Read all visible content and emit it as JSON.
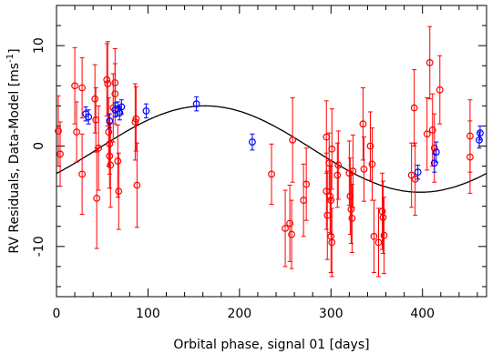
{
  "chart_data": {
    "type": "scatter",
    "xlabel": "Orbital phase, signal 01 [days]",
    "ylabel_main": "RV Residuals, Data-Model [ms",
    "ylabel_sup": "-1",
    "ylabel_end": "]",
    "xlim": [
      0,
      470
    ],
    "ylim": [
      -15,
      14
    ],
    "x_ticks": [
      0,
      100,
      200,
      300,
      400
    ],
    "y_ticks": [
      -10,
      0,
      10
    ],
    "x_tick_labels": [
      "0",
      "100",
      "200",
      "300",
      "400"
    ],
    "y_tick_labels": [
      "-10",
      "0",
      "10"
    ],
    "model_curve": {
      "offset": -0.3,
      "amplitude": 4.3,
      "period": 470,
      "phase": -0.6
    },
    "series": [
      {
        "color": "#ff0000",
        "points": [
          {
            "x": 2,
            "y": 1.5,
            "err": 3.5
          },
          {
            "x": 4,
            "y": -0.8,
            "err": 3.2
          },
          {
            "x": 20,
            "y": 6.0,
            "err": 3.8
          },
          {
            "x": 22,
            "y": 1.4,
            "err": 3.0
          },
          {
            "x": 28,
            "y": 5.8,
            "err": 3.0
          },
          {
            "x": 28,
            "y": -2.8,
            "err": 4.0
          },
          {
            "x": 42,
            "y": 4.7,
            "err": 3.4
          },
          {
            "x": 43,
            "y": 2.6,
            "err": 3.2
          },
          {
            "x": 44,
            "y": -5.2,
            "err": 5.0
          },
          {
            "x": 46,
            "y": -0.2,
            "err": 4.2
          },
          {
            "x": 55,
            "y": 6.6,
            "err": 3.6
          },
          {
            "x": 56,
            "y": 6.2,
            "err": 4.2
          },
          {
            "x": 57,
            "y": 1.4,
            "err": 3.4
          },
          {
            "x": 58,
            "y": 0.2,
            "err": 3.0
          },
          {
            "x": 58,
            "y": -1.0,
            "err": 3.2
          },
          {
            "x": 59,
            "y": -1.9,
            "err": 4.2
          },
          {
            "x": 62,
            "y": 3.8,
            "err": 3.4
          },
          {
            "x": 64,
            "y": 6.3,
            "err": 3.4
          },
          {
            "x": 64,
            "y": 5.2,
            "err": 3.0
          },
          {
            "x": 67,
            "y": -1.5,
            "err": 3.6
          },
          {
            "x": 68,
            "y": -4.5,
            "err": 3.8
          },
          {
            "x": 86,
            "y": 2.4,
            "err": 3.8
          },
          {
            "x": 87,
            "y": 2.7,
            "err": 3.2
          },
          {
            "x": 88,
            "y": -3.9,
            "err": 4.2
          },
          {
            "x": 235,
            "y": -2.8,
            "err": 3.0
          },
          {
            "x": 250,
            "y": -8.2,
            "err": 3.8
          },
          {
            "x": 255,
            "y": -7.7,
            "err": 3.8
          },
          {
            "x": 257,
            "y": -8.8,
            "err": 3.4
          },
          {
            "x": 258,
            "y": 0.6,
            "err": 4.2
          },
          {
            "x": 270,
            "y": -5.4,
            "err": 3.6
          },
          {
            "x": 273,
            "y": -3.8,
            "err": 3.6
          },
          {
            "x": 295,
            "y": 0.9,
            "err": 3.6
          },
          {
            "x": 295,
            "y": -4.5,
            "err": 3.8
          },
          {
            "x": 296,
            "y": -6.9,
            "err": 4.4
          },
          {
            "x": 298,
            "y": -1.7,
            "err": 3.0
          },
          {
            "x": 299,
            "y": -5.0,
            "err": 3.6
          },
          {
            "x": 300,
            "y": -5.4,
            "err": 3.4
          },
          {
            "x": 300,
            "y": -9.0,
            "err": 3.6
          },
          {
            "x": 301,
            "y": -9.6,
            "err": 3.4
          },
          {
            "x": 301,
            "y": -0.3,
            "err": 4.0
          },
          {
            "x": 307,
            "y": -2.9,
            "err": 3.2
          },
          {
            "x": 308,
            "y": -1.9,
            "err": 3.4
          },
          {
            "x": 320,
            "y": -2.7,
            "err": 3.2
          },
          {
            "x": 321,
            "y": -5.0,
            "err": 3.8
          },
          {
            "x": 322,
            "y": -6.3,
            "err": 3.4
          },
          {
            "x": 323,
            "y": -7.2,
            "err": 3.4
          },
          {
            "x": 324,
            "y": -2.5,
            "err": 3.6
          },
          {
            "x": 335,
            "y": 2.2,
            "err": 3.6
          },
          {
            "x": 336,
            "y": -2.3,
            "err": 3.2
          },
          {
            "x": 343,
            "y": 0.0,
            "err": 3.4
          },
          {
            "x": 345,
            "y": -1.8,
            "err": 3.6
          },
          {
            "x": 347,
            "y": -9.0,
            "err": 3.6
          },
          {
            "x": 352,
            "y": -9.6,
            "err": 3.4
          },
          {
            "x": 356,
            "y": -6.5,
            "err": 3.8
          },
          {
            "x": 357,
            "y": -7.1,
            "err": 3.6
          },
          {
            "x": 358,
            "y": -8.9,
            "err": 3.8
          },
          {
            "x": 388,
            "y": -2.9,
            "err": 3.2
          },
          {
            "x": 391,
            "y": 3.8,
            "err": 3.8
          },
          {
            "x": 392,
            "y": -3.3,
            "err": 3.6
          },
          {
            "x": 405,
            "y": 1.2,
            "err": 3.6
          },
          {
            "x": 408,
            "y": 8.3,
            "err": 3.6
          },
          {
            "x": 411,
            "y": 1.6,
            "err": 3.6
          },
          {
            "x": 413,
            "y": -0.2,
            "err": 3.4
          },
          {
            "x": 419,
            "y": 5.6,
            "err": 3.4
          },
          {
            "x": 452,
            "y": 1.0,
            "err": 3.6
          },
          {
            "x": 452,
            "y": -1.1,
            "err": 3.6
          }
        ]
      },
      {
        "color": "#0000ff",
        "points": [
          {
            "x": 32,
            "y": 3.2,
            "err": 0.7
          },
          {
            "x": 35,
            "y": 2.9,
            "err": 0.7
          },
          {
            "x": 58,
            "y": 2.5,
            "err": 0.7
          },
          {
            "x": 64,
            "y": 3.6,
            "err": 0.7
          },
          {
            "x": 67,
            "y": 3.7,
            "err": 0.7
          },
          {
            "x": 69,
            "y": 3.3,
            "err": 0.7
          },
          {
            "x": 71,
            "y": 3.9,
            "err": 0.7
          },
          {
            "x": 98,
            "y": 3.5,
            "err": 0.7
          },
          {
            "x": 153,
            "y": 4.2,
            "err": 0.7
          },
          {
            "x": 214,
            "y": 0.4,
            "err": 0.8
          },
          {
            "x": 395,
            "y": -2.6,
            "err": 0.7
          },
          {
            "x": 413,
            "y": -1.7,
            "err": 0.9
          },
          {
            "x": 415,
            "y": -0.6,
            "err": 1.0
          },
          {
            "x": 462,
            "y": 0.6,
            "err": 0.8
          },
          {
            "x": 463,
            "y": 1.3,
            "err": 0.7
          }
        ]
      }
    ]
  }
}
